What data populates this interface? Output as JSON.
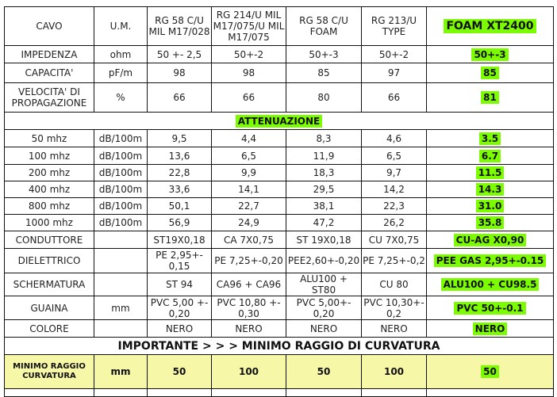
{
  "header": {
    "cavo": "CAVO",
    "um": "U.M.",
    "cables": [
      "RG 58  C/U MIL M17/028",
      "RG 214/U MIL M17/075/U MIL M17/075",
      "RG 58 C/U FOAM",
      "RG 213/U TYPE",
      "FOAM XT2400"
    ]
  },
  "rows_top": [
    {
      "label": "IMPEDENZA",
      "um": "ohm",
      "values": [
        "50 +- 2,5",
        "50+-2",
        "50+-3",
        "50+-2",
        "50+-3"
      ]
    },
    {
      "label": "CAPACITA'",
      "um": "pF/m",
      "values": [
        "98",
        "98",
        "85",
        "97",
        "85"
      ]
    },
    {
      "label": "VELOCITA' DI PROPAGAZIONE",
      "um": "%",
      "values": [
        "66",
        "66",
        "80",
        "66",
        "81"
      ]
    }
  ],
  "attenuazione_title": "ATTENUAZIONE",
  "rows_att": [
    {
      "label": "50 mhz",
      "um": "dB/100m",
      "values": [
        "9,5",
        "4,4",
        "8,3",
        "4,6",
        "3.5"
      ]
    },
    {
      "label": "100 mhz",
      "um": "dB/100m",
      "values": [
        "13,6",
        "6,5",
        "11,9",
        "6,5",
        "6.7"
      ]
    },
    {
      "label": "200 mhz",
      "um": "dB/100m",
      "values": [
        "22,8",
        "9,9",
        "18,3",
        "9,7",
        "11.5"
      ]
    },
    {
      "label": "400 mhz",
      "um": "dB/100m",
      "values": [
        "33,6",
        "14,1",
        "29,5",
        "14,2",
        "14.3"
      ]
    },
    {
      "label": "800 mhz",
      "um": "dB/100m",
      "values": [
        "50,1",
        "22,7",
        "38,1",
        "22,3",
        "31.0"
      ]
    },
    {
      "label": "1000 mhz",
      "um": "dB/100m",
      "values": [
        "56,9",
        "24,9",
        "47,2",
        "26,2",
        "35.8"
      ]
    }
  ],
  "rows_mat": [
    {
      "label": "CONDUTTORE",
      "um": "",
      "values": [
        "ST19X0,18",
        "CA 7X0,75",
        "ST 19X0,18",
        "CU 7X0,75",
        "CU-AG X0,90"
      ]
    },
    {
      "label": "DIELETTRICO",
      "um": "",
      "values": [
        "PE 2,95+- 0,15",
        "PE 7,25+-0,20",
        "PEE2,60+-0,20",
        "PE 7,25+-0,2",
        "PEE GAS 2,95+-0.15"
      ]
    },
    {
      "label": "SCHERMATURA",
      "um": "",
      "values": [
        "ST 94",
        "CA96 + CA96",
        "ALU100 + ST80",
        "CU 80",
        "ALU100 + CU98.5"
      ]
    },
    {
      "label": "GUAINA",
      "um": "mm",
      "values": [
        "PVC 5,00 +- 0,20",
        "PVC 10,80 +- 0,30",
        "PVC 5,00+- 0,20",
        "PVC 10,30+- 0,2",
        "PVC 50+-0.1"
      ]
    },
    {
      "label": "COLORE",
      "um": "",
      "values": [
        "NERO",
        "NERO",
        "NERO",
        "NERO",
        "NERO"
      ]
    }
  ],
  "importante": "IMPORTANTE > > >  MINIMO  RAGGIO DI CURVATURA",
  "raggio": {
    "label": "MINIMO RAGGIO CURVATURA",
    "um": "mm",
    "values": [
      "50",
      "100",
      "50",
      "100",
      "50"
    ]
  },
  "colors": {
    "highlight": "#7cfc00",
    "raggio_row": "#f7f7a8"
  }
}
